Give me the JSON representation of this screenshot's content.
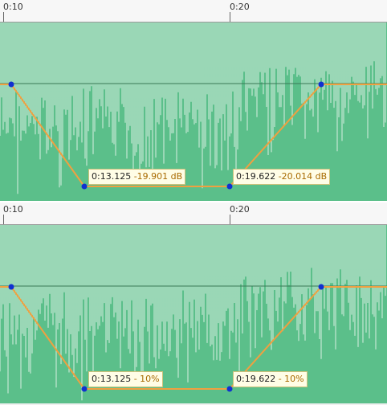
{
  "colors": {
    "waveform": "#5bbf8a",
    "waveform_light": "#d6efe0",
    "envelope_line": "#f0a040",
    "control_point": "#1030d0"
  },
  "top_panel": {
    "ruler": {
      "tick_0": "0:10",
      "tick_1": "0:20"
    },
    "point_a": {
      "time": "0:13.125",
      "value": "-19.901 dB"
    },
    "point_b": {
      "time": "0:19.622",
      "value": "-20.014 dB"
    }
  },
  "bottom_panel": {
    "ruler": {
      "tick_0": "0:10",
      "tick_1": "0:20"
    },
    "point_a": {
      "time": "0:13.125",
      "value": "- 10%"
    },
    "point_b": {
      "time": "0:19.622",
      "value": "- 10%"
    }
  }
}
